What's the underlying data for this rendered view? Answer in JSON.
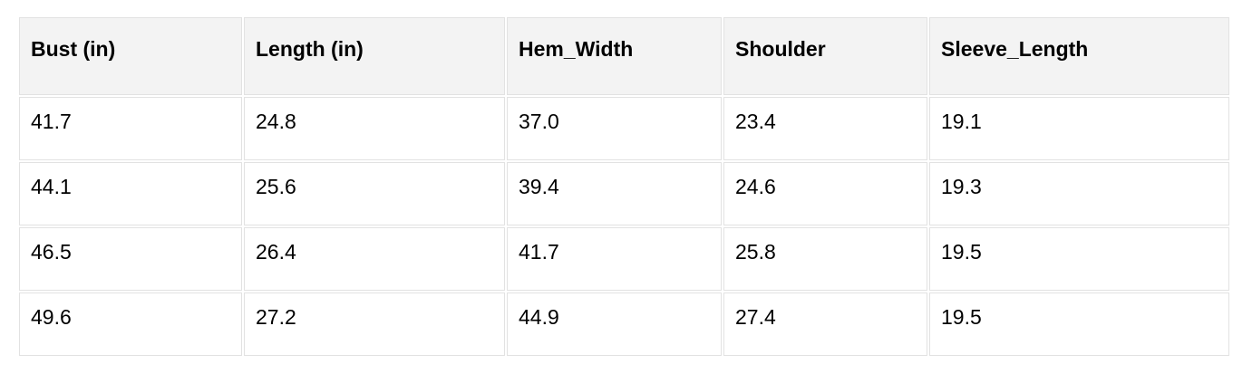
{
  "table": {
    "columns": [
      "Bust (in)",
      "Length (in)",
      "Hem_Width",
      "Shoulder",
      "Sleeve_Length"
    ],
    "rows": [
      [
        "41.7",
        "24.8",
        "37.0",
        "23.4",
        "19.1"
      ],
      [
        "44.1",
        "25.6",
        "39.4",
        "24.6",
        "19.3"
      ],
      [
        "46.5",
        "26.4",
        "41.7",
        "25.8",
        "19.5"
      ],
      [
        "49.6",
        "27.2",
        "44.9",
        "27.4",
        "19.5"
      ]
    ]
  },
  "chart_data": {
    "type": "table",
    "columns": [
      "Bust (in)",
      "Length (in)",
      "Hem_Width",
      "Shoulder",
      "Sleeve_Length"
    ],
    "rows": [
      [
        41.7,
        24.8,
        37.0,
        23.4,
        19.1
      ],
      [
        44.1,
        25.6,
        39.4,
        24.6,
        19.3
      ],
      [
        46.5,
        26.4,
        41.7,
        25.8,
        19.5
      ],
      [
        49.6,
        27.2,
        44.9,
        27.4,
        19.5
      ]
    ],
    "title": "",
    "notes": "Garment size measurement table, 4 size rows by 5 measurement columns"
  },
  "colors": {
    "header_bg": "#f3f3f3",
    "cell_border": "#e2e2e2",
    "text": "#000000",
    "page_bg": "#ffffff"
  }
}
